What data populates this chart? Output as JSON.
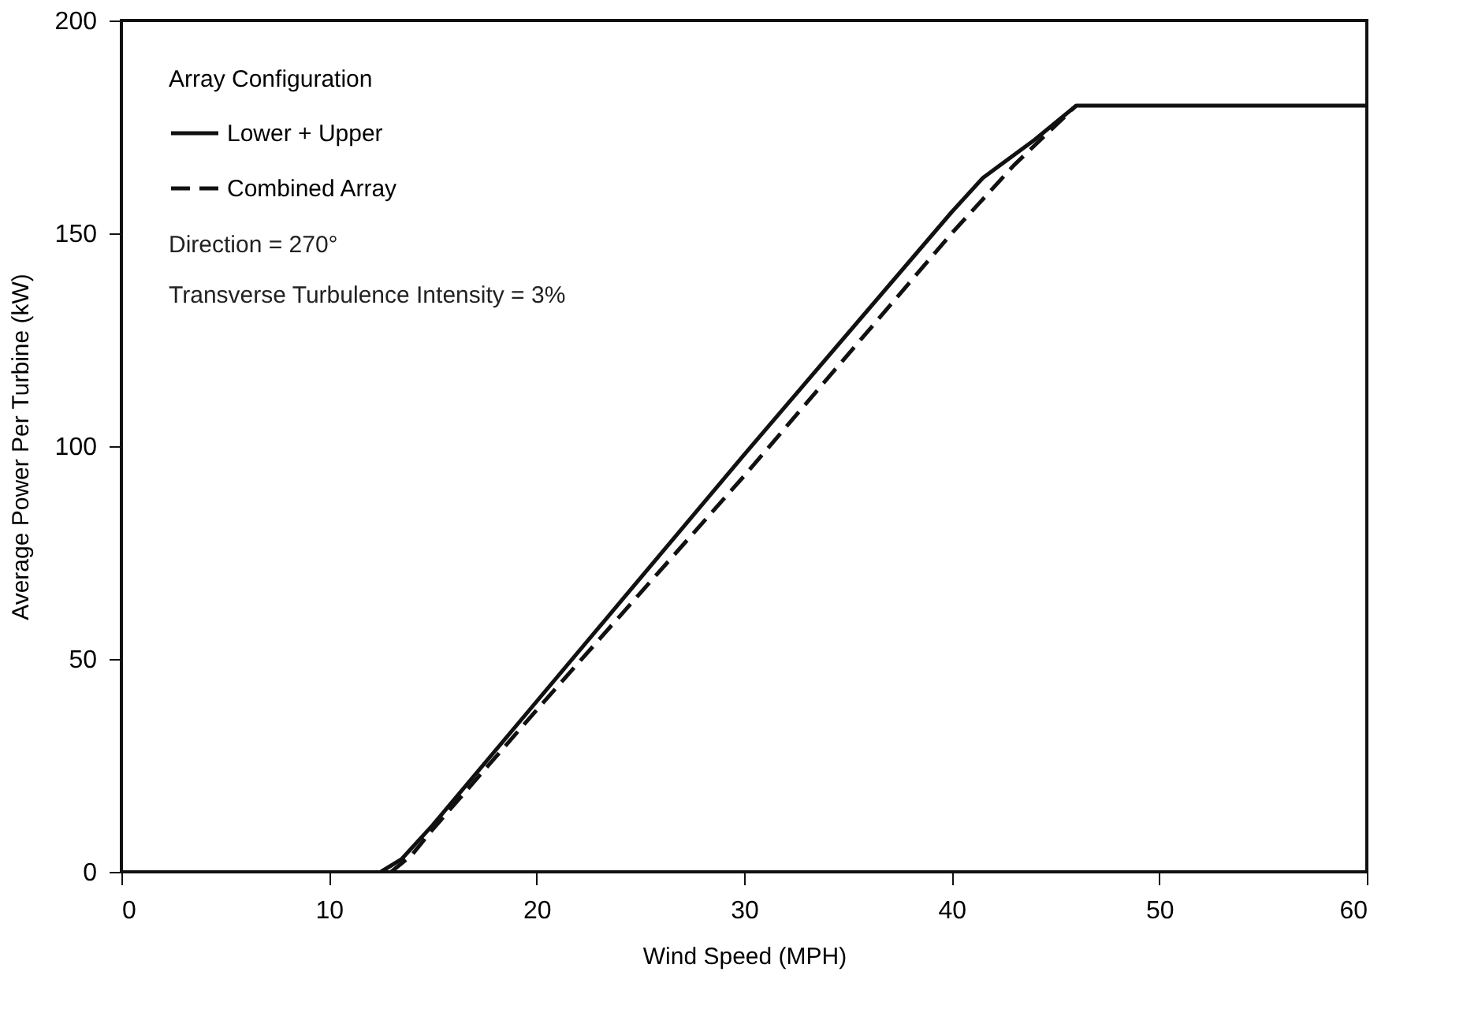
{
  "chart_data": {
    "type": "line",
    "xlabel": "Wind Speed (MPH)",
    "ylabel": "Average Power Per Turbine (kW)",
    "legend_title": "Array Configuration",
    "legend": "top left",
    "grid": false,
    "marker": "none",
    "xlim": [
      0,
      60
    ],
    "xticks": [
      0,
      10,
      20,
      30,
      40,
      50,
      60
    ],
    "ylim": [
      0,
      200
    ],
    "yticks": [
      0,
      50,
      100,
      150,
      200
    ],
    "annotations": [
      "Direction = 270°",
      "Transverse Turbulence Intensity = 3%"
    ],
    "series": [
      {
        "name": "Lower + Upper",
        "color": "#111111",
        "line_style": "solid",
        "x": [
          12.5,
          13.5,
          15,
          20,
          30,
          40,
          41.5,
          44,
          46,
          60
        ],
        "values": [
          0,
          3,
          11,
          40,
          98,
          155,
          163,
          172,
          180,
          180
        ]
      },
      {
        "name": "Combined Array",
        "color": "#111111",
        "line_style": "dashed",
        "x": [
          13,
          14,
          15,
          20,
          30,
          40,
          43,
          46
        ],
        "values": [
          0,
          4,
          10,
          38,
          93,
          150,
          166,
          180
        ]
      }
    ]
  }
}
